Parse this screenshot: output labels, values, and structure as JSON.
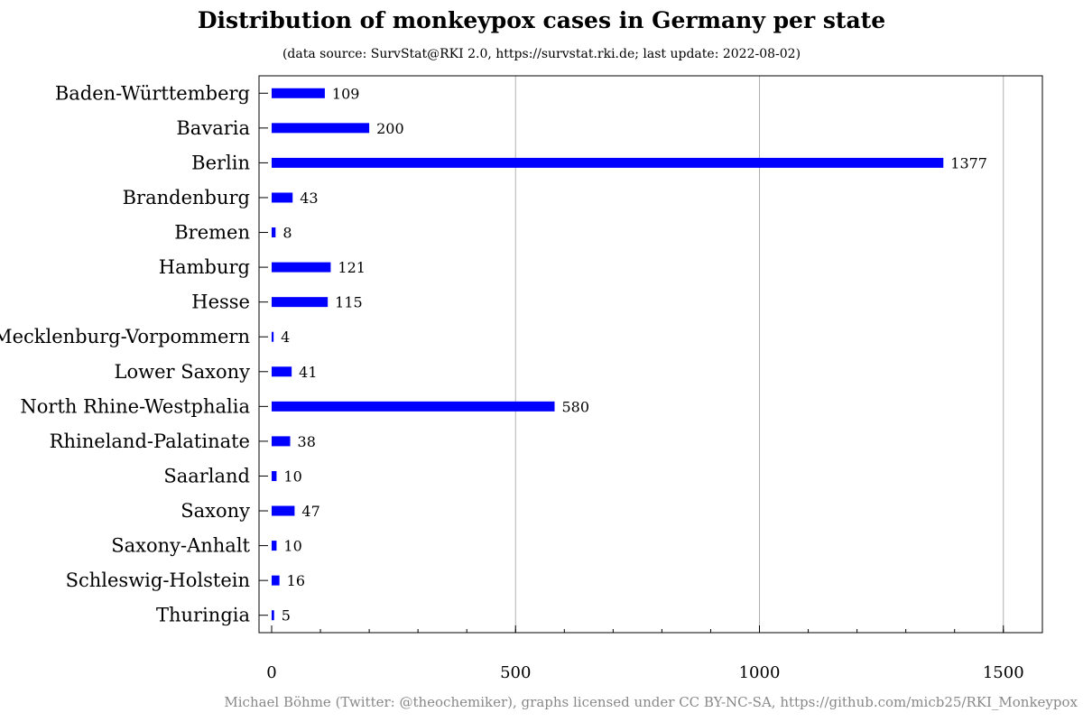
{
  "chart_data": {
    "type": "bar",
    "orientation": "horizontal",
    "title": "Distribution of monkeypox cases in Germany per state",
    "subtitle": "(data source: SurvStat@RKI 2.0, https://survstat.rki.de; last update: 2022-08-02)",
    "categories": [
      "Baden-Württemberg",
      "Bavaria",
      "Berlin",
      "Brandenburg",
      "Bremen",
      "Hamburg",
      "Hesse",
      "Mecklenburg-Vorpommern",
      "Lower Saxony",
      "North Rhine-Westphalia",
      "Rhineland-Palatinate",
      "Saarland",
      "Saxony",
      "Saxony-Anhalt",
      "Schleswig-Holstein",
      "Thuringia"
    ],
    "values": [
      109,
      200,
      1377,
      43,
      8,
      121,
      115,
      4,
      41,
      580,
      38,
      10,
      47,
      10,
      16,
      5
    ],
    "xlim": [
      0,
      1580
    ],
    "xticks": [
      0,
      500,
      1000,
      1500
    ],
    "xtick_labels": [
      "0",
      "500",
      "1000",
      "1500"
    ],
    "xlabel": "",
    "ylabel": "",
    "grid": "vertical",
    "bar_color": "#0000ff",
    "grid_color": "#b0b0b0"
  },
  "footer": "Michael Böhme (Twitter: @theochemiker), graphs licensed under CC BY-NC-SA, https://github.com/micb25/RKI_Monkeypox",
  "footer_color": "#888888"
}
